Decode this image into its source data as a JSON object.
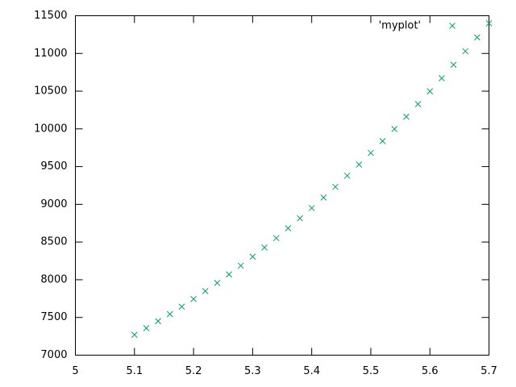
{
  "chart_data": {
    "type": "scatter",
    "series": [
      {
        "name": "'myplot'",
        "color": "#009e73",
        "x": [
          5.1,
          5.12,
          5.14,
          5.16,
          5.18,
          5.2,
          5.22,
          5.24,
          5.26,
          5.28,
          5.3,
          5.32,
          5.34,
          5.36,
          5.38,
          5.4,
          5.42,
          5.44,
          5.46,
          5.48,
          5.5,
          5.52,
          5.54,
          5.56,
          5.58,
          5.6,
          5.62,
          5.64,
          5.66,
          5.68,
          5.7
        ],
        "values": [
          7270,
          7358,
          7450,
          7544,
          7643,
          7744,
          7850,
          7958,
          8070,
          8186,
          8305,
          8427,
          8552,
          8682,
          8814,
          8950,
          9090,
          9232,
          9379,
          9528,
          9681,
          9838,
          9998,
          10161,
          10328,
          10498,
          10672,
          10849,
          11029,
          11213,
          11400
        ]
      }
    ],
    "xlim": [
      5,
      5.7
    ],
    "xticks": [
      5,
      5.1,
      5.2,
      5.3,
      5.4,
      5.5,
      5.6,
      5.7
    ],
    "ylim": [
      7000,
      11500
    ],
    "yticks": [
      7000,
      7500,
      8000,
      8500,
      9000,
      9500,
      10000,
      10500,
      11000,
      11500
    ],
    "legend": "top-right"
  }
}
